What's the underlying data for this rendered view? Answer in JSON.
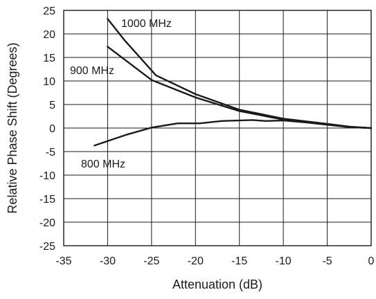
{
  "chart_data": {
    "type": "line",
    "xlabel": "Attenuation (dB)",
    "ylabel": "Relative Phase Shift (Degrees)",
    "xlim": [
      -35,
      0
    ],
    "ylim": [
      -25,
      25
    ],
    "xticks": [
      -35,
      -30,
      -25,
      -20,
      -15,
      -10,
      -5,
      0
    ],
    "yticks": [
      25,
      20,
      15,
      10,
      5,
      0,
      -5,
      -10,
      -15,
      -20,
      -25
    ],
    "grid": true,
    "series": [
      {
        "name": "1000 MHz",
        "x": [
          -30,
          -28,
          -24.5,
          -20,
          -15,
          -10,
          -5,
          -2.5,
          0
        ],
        "y": [
          23.2,
          18.5,
          11.2,
          7.2,
          3.9,
          2.0,
          0.9,
          0.3,
          0
        ]
      },
      {
        "name": "900 MHz",
        "x": [
          -30,
          -25,
          -20,
          -15,
          -10,
          -5,
          -2.5,
          0
        ],
        "y": [
          17.3,
          10.2,
          6.5,
          3.6,
          1.8,
          0.7,
          0.2,
          0
        ]
      },
      {
        "name": "800 MHz",
        "x": [
          -31.5,
          -28,
          -25,
          -22,
          -19.5,
          -17,
          -13.5,
          -12,
          -10,
          -7.5,
          -5,
          -2.5,
          0
        ],
        "y": [
          -3.7,
          -1.5,
          0.1,
          1.0,
          1.0,
          1.5,
          1.7,
          1.5,
          1.6,
          1.2,
          0.7,
          0.2,
          0
        ]
      }
    ]
  }
}
